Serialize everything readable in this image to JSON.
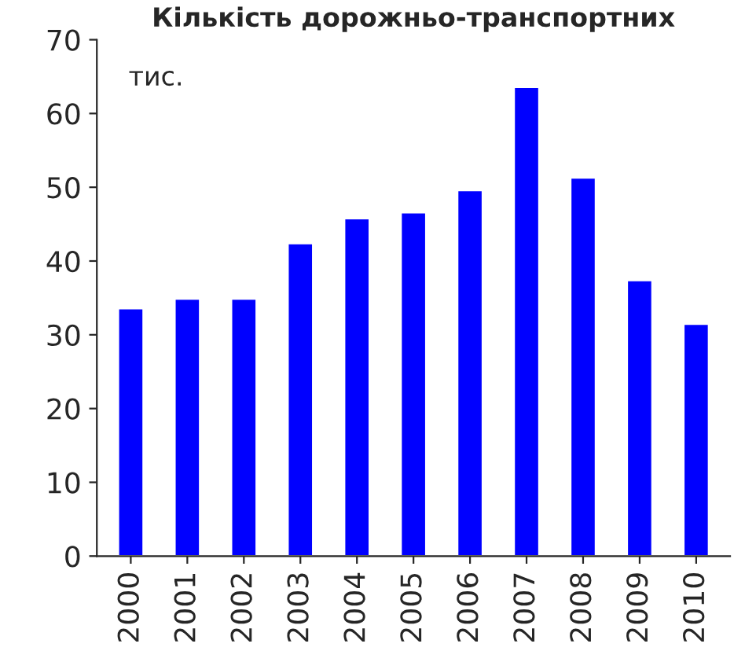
{
  "chart_data": {
    "type": "bar",
    "title": "Кількість дорожньо-транспортних",
    "categories": [
      "2000",
      "2001",
      "2002",
      "2003",
      "2004",
      "2005",
      "2006",
      "2007",
      "2008",
      "2009",
      "2010"
    ],
    "values": [
      33.6,
      34.9,
      34.9,
      42.4,
      45.8,
      46.6,
      49.6,
      63.6,
      51.3,
      37.4,
      31.5
    ],
    "color": "#0000ff",
    "ylim": [
      0,
      70
    ],
    "yticks": [
      0,
      10,
      20,
      30,
      40,
      50,
      60,
      70
    ],
    "annotations": [
      "тис."
    ],
    "grid": false
  }
}
